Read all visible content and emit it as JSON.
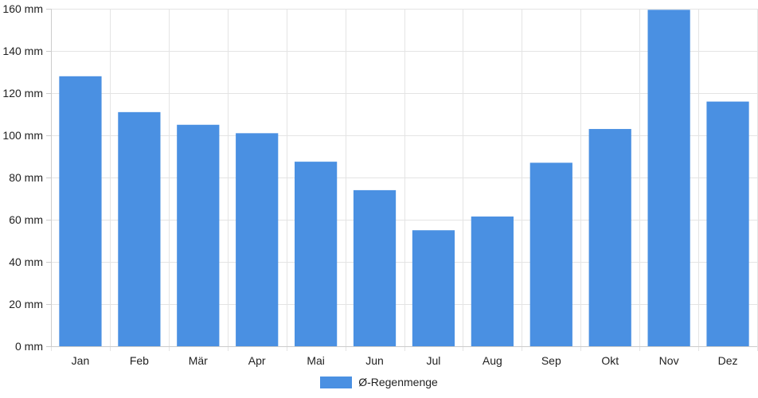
{
  "chart_data": {
    "type": "bar",
    "categories": [
      "Jan",
      "Feb",
      "Mär",
      "Apr",
      "Mai",
      "Jun",
      "Jul",
      "Aug",
      "Sep",
      "Okt",
      "Nov",
      "Dez"
    ],
    "series": [
      {
        "name": "Ø-Regenmenge",
        "values": [
          128,
          111,
          105,
          101,
          87.5,
          74,
          55,
          61.5,
          87,
          103,
          159.5,
          116
        ],
        "color": "#4a90e2"
      }
    ],
    "ylim": [
      0,
      160
    ],
    "yticks": [
      0,
      20,
      40,
      60,
      80,
      100,
      120,
      140,
      160
    ],
    "ytick_labels": [
      "0 mm",
      "20 mm",
      "40 mm",
      "60 mm",
      "80 mm",
      "100 mm",
      "120 mm",
      "140 mm",
      "160 mm"
    ],
    "grid": true,
    "legend_position": "bottom"
  }
}
